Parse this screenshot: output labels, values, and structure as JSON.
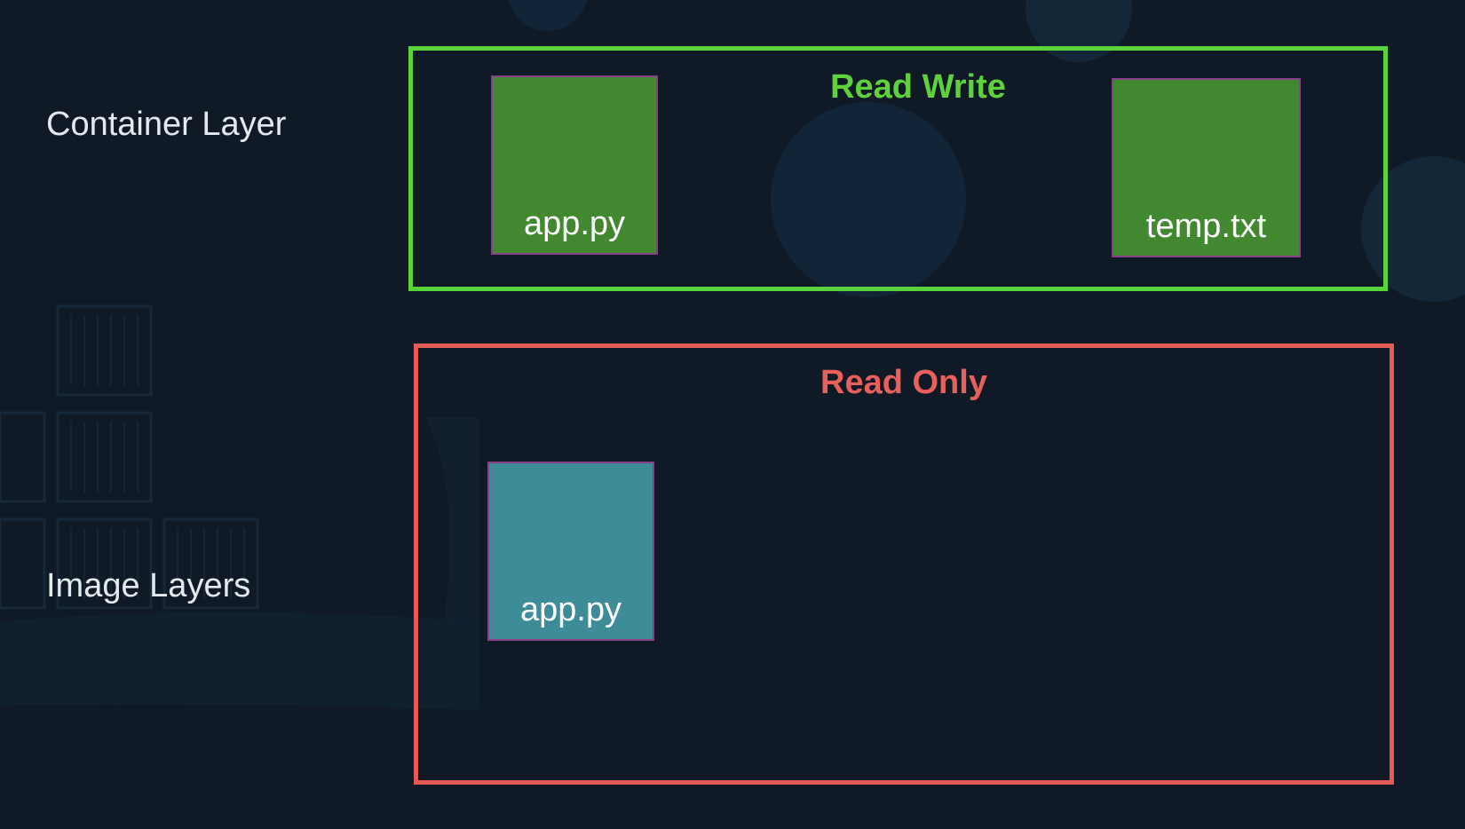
{
  "labels": {
    "container_layer": "Container Layer",
    "image_layers": "Image Layers"
  },
  "read_write": {
    "title": "Read Write",
    "border_color": "#59d43b",
    "files": [
      "app.py",
      "temp.txt"
    ]
  },
  "read_only": {
    "title": "Read Only",
    "border_color": "#e35a56",
    "files": [
      "app.py"
    ]
  },
  "colors": {
    "background": "#0f1a26",
    "writable_file": "#418831",
    "readonly_file": "#3f8c99"
  }
}
